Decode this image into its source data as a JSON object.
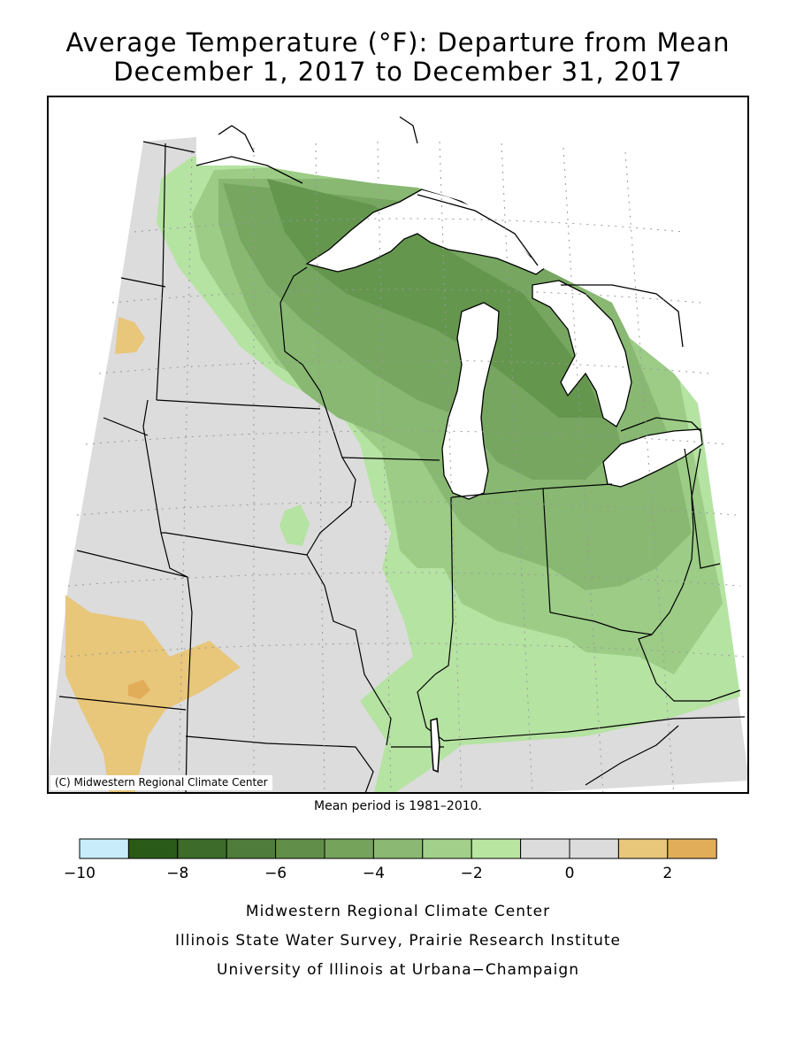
{
  "header": {
    "title_line1": "Average Temperature (°F): Departure from Mean",
    "title_line2": "December 1, 2017 to December 31, 2017"
  },
  "map": {
    "copyright": "(C) Midwestern Regional Climate Center",
    "colors": {
      "background_land": "#dcdcdc",
      "lakes": "#ffffff",
      "warm_light": "#e8c67a",
      "warm_dark": "#e2ad58",
      "green_1": "#b5e3a2",
      "green_2": "#9ccc86",
      "green_3": "#88b872",
      "green_4": "#76a660",
      "green_5": "#64964e"
    }
  },
  "mean_period": "Mean period is 1981–2010.",
  "legend": {
    "bins": [
      {
        "from": -10,
        "to": -9,
        "color": "#c9ecfa"
      },
      {
        "from": -9,
        "to": -8,
        "color": "#2a5a18"
      },
      {
        "from": -8,
        "to": -7,
        "color": "#3d6b2a"
      },
      {
        "from": -7,
        "to": -6,
        "color": "#4f7c3a"
      },
      {
        "from": -6,
        "to": -5,
        "color": "#618e49"
      },
      {
        "from": -5,
        "to": -4,
        "color": "#76a35c"
      },
      {
        "from": -4,
        "to": -3,
        "color": "#8bb873"
      },
      {
        "from": -3,
        "to": -2,
        "color": "#a2cf89"
      },
      {
        "from": -2,
        "to": -1,
        "color": "#b8e6a0"
      },
      {
        "from": -1,
        "to": 0,
        "color": "#dcdcdc"
      },
      {
        "from": 0,
        "to": 1,
        "color": "#dcdcdc"
      },
      {
        "from": 1,
        "to": 2,
        "color": "#e8c67a"
      },
      {
        "from": 2,
        "to": 3,
        "color": "#e2ad58"
      }
    ],
    "tick_labels": [
      "−10",
      "−8",
      "−6",
      "−4",
      "−2",
      "0",
      "2"
    ],
    "tick_values": [
      -10,
      -8,
      -6,
      -4,
      -2,
      0,
      2
    ]
  },
  "credits": {
    "line1": "Midwestern Regional Climate Center",
    "line2": "Illinois State Water Survey, Prairie Research Institute",
    "line3": "University of Illinois at Urbana−Champaign"
  }
}
